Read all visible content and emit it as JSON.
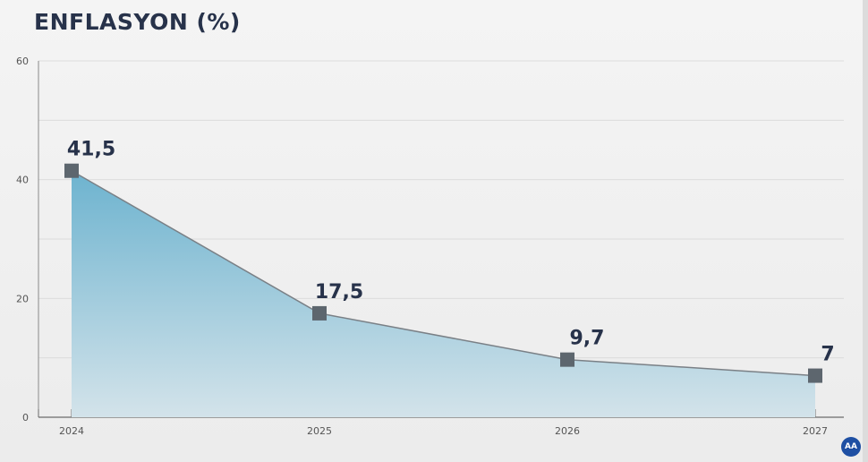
{
  "title": "ENFLASYON (%)",
  "logo_text": "AA",
  "chart_data": {
    "type": "area",
    "title": "ENFLASYON (%)",
    "categories": [
      "2024",
      "2025",
      "2026",
      "2027"
    ],
    "values": [
      41.5,
      17.5,
      9.7,
      7
    ],
    "value_labels": [
      "41,5",
      "17,5",
      "9,7",
      "7"
    ],
    "ylim": [
      0,
      60
    ],
    "yticks": [
      0,
      20,
      40,
      60
    ],
    "grid": true,
    "legend": "none",
    "colors": {
      "fill_top": "#6db3cf",
      "fill_bottom": "#d3e3ea",
      "line": "#7a8086",
      "marker": "#5d666e",
      "label": "#27324a"
    }
  }
}
